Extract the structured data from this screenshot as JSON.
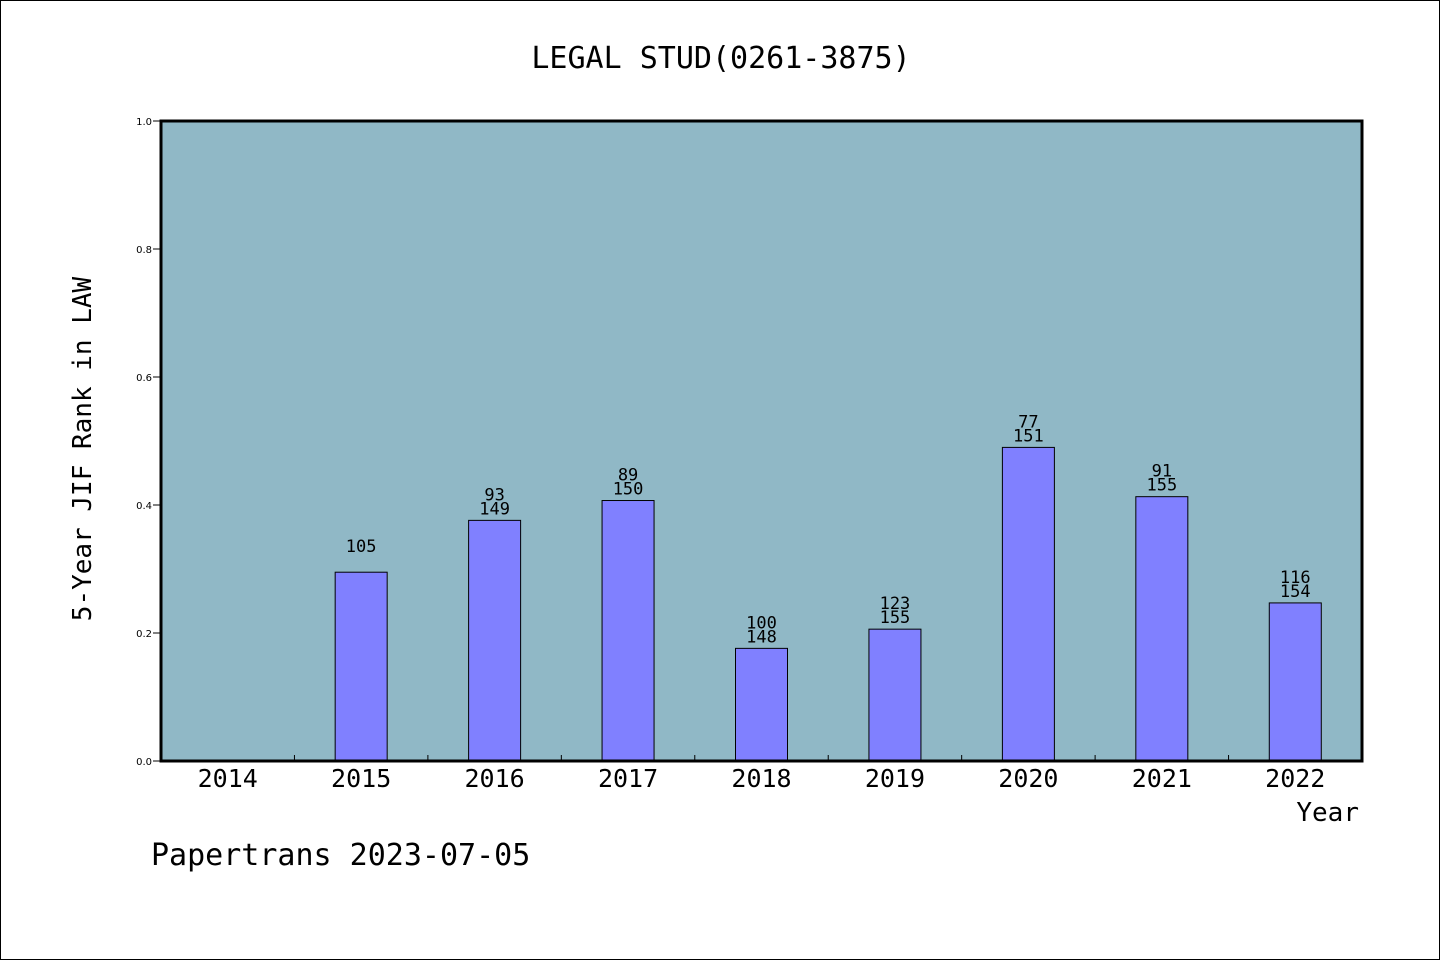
{
  "chart_data": {
    "type": "bar",
    "title": "LEGAL STUD(0261-3875)",
    "xlabel": "Year",
    "ylabel": "5-Year JIF Rank in LAW",
    "ylim": [
      0,
      1.0
    ],
    "yticks": [
      "0.0",
      "0.2",
      "0.4",
      "0.6",
      "0.8",
      "1.0"
    ],
    "categories": [
      "2014",
      "2015",
      "2016",
      "2017",
      "2018",
      "2019",
      "2020",
      "2021",
      "2022"
    ],
    "values": [
      null,
      0.295,
      0.376,
      0.407,
      0.176,
      0.206,
      0.49,
      0.413,
      0.247
    ],
    "rank_labels": [
      "",
      "105",
      "93",
      "89",
      "100",
      "123",
      "77",
      "91",
      "116"
    ],
    "total_labels": [
      "",
      "",
      "149",
      "150",
      "148",
      "155",
      "151",
      "155",
      "154"
    ],
    "grid": false,
    "legend": "none",
    "colors": {
      "plot_background": "#90b8c6",
      "bar_fill": "#8080ff",
      "bar_stroke": "#000000"
    }
  },
  "footer": "Papertrans 2023-07-05"
}
